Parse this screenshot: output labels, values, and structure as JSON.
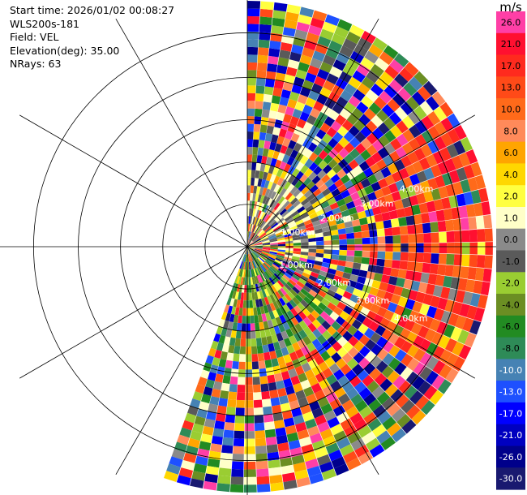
{
  "header": {
    "start_time": "Start time: 2026/01/02 00:08:27",
    "instrument": "WLS200s-181",
    "field": "Field: VEL",
    "elevation": "Elevation(deg): 35.00",
    "nrays": "NRays: 63"
  },
  "colorbar": {
    "unit": "m/s",
    "levels": [
      {
        "value": "26.0",
        "color": "#ff3fa6"
      },
      {
        "value": "21.0",
        "color": "#ff1030"
      },
      {
        "value": "17.0",
        "color": "#ff2a1e"
      },
      {
        "value": "13.0",
        "color": "#ff4a18"
      },
      {
        "value": "10.0",
        "color": "#ff6a1a"
      },
      {
        "value": "8.0",
        "color": "#ff8a5a"
      },
      {
        "value": "6.0",
        "color": "#ffa500"
      },
      {
        "value": "4.0",
        "color": "#ffd700"
      },
      {
        "value": "2.0",
        "color": "#ffff40"
      },
      {
        "value": "1.0",
        "color": "#ffffc8"
      },
      {
        "value": "0.0",
        "color": "#8a8a8a"
      },
      {
        "value": "-1.0",
        "color": "#5a5a5a"
      },
      {
        "value": "-2.0",
        "color": "#9acd32"
      },
      {
        "value": "-4.0",
        "color": "#6b8e23"
      },
      {
        "value": "-6.0",
        "color": "#228b22"
      },
      {
        "value": "-8.0",
        "color": "#2e8b57"
      },
      {
        "value": "-10.0",
        "color": "#4682b4"
      },
      {
        "value": "-13.0",
        "color": "#1e50ff"
      },
      {
        "value": "-17.0",
        "color": "#0000ff"
      },
      {
        "value": "-21.0",
        "color": "#0000c0"
      },
      {
        "value": "-26.0",
        "color": "#00008b"
      },
      {
        "value": "-30.0",
        "color": "#191970"
      }
    ]
  },
  "chart_data": {
    "type": "heatmap",
    "projection": "polar PPI (plan position indicator)",
    "field": "VEL",
    "units": "m/s",
    "elevation_deg": 35.0,
    "nrays": 63,
    "azimuth_coverage_deg": [
      0,
      200
    ],
    "max_range_km": 5.0,
    "range_ring_labels": [
      "1.00km",
      "2.00km",
      "3.00km",
      "4.00km"
    ],
    "grid": "on",
    "color_scale_min": -30.0,
    "color_scale_max": 26.0,
    "pattern": "yellow/grey near-zero velocities near center; red/orange positive velocities on east side at outer ranges; green negative velocities to the south near center; noisy multicolor gates elsewhere"
  }
}
